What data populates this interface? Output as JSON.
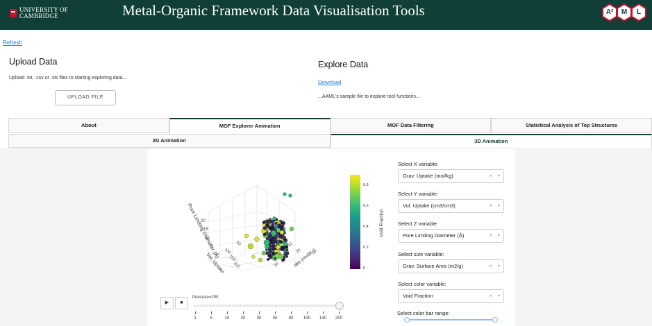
{
  "header": {
    "logo_line1": "UNIVERSITY OF",
    "logo_line2": "CAMBRIDGE",
    "title": "Metal-Organic Framework Data Visualisation Tools",
    "badge_letters": [
      "A²",
      "M",
      "L"
    ]
  },
  "refresh_label": "Refresh",
  "upload": {
    "heading": "Upload Data",
    "description": "Upload .txt, .csv or .xls files to starting exploring data...",
    "button_label": "UPLOAD FILE"
  },
  "explore": {
    "heading": "Explore Data",
    "download_label": "Download",
    "description": "...AAML's sample file to explore tool functions..."
  },
  "tabs": [
    "About",
    "MOF Explorer Animation",
    "MOF Data Filtering",
    "Statistical Analysis of Top Structures"
  ],
  "active_tab": 1,
  "subtabs": [
    "2D Animation",
    "3D Animation"
  ],
  "active_subtab": 1,
  "plot": {
    "axis_z_label": "Pore Limiting Diameter (Å)",
    "axis_y_label": "Vol. Uptake",
    "axis_x_label": "ake (mol/kg)",
    "z_ticks": [
      "20",
      "15",
      "10",
      "5",
      "0"
    ],
    "y_ticks": [
      "100",
      "150",
      "200",
      "50"
    ],
    "x_ticks": [
      "20",
      "25",
      "15",
      "10"
    ],
    "colorbar_title": "Void Fraction",
    "colorbar_ticks": [
      "0.8",
      "0.6",
      "0.4",
      "0.2",
      "0"
    ]
  },
  "controls": {
    "x_label": "Select X variable:",
    "x_value": "Grav. Uptake (mol/kg)",
    "y_label": "Select Y variable:",
    "y_value": "Vol. Uptake (cm3/cm3)",
    "z_label": "Select Z variable:",
    "z_value": "Pore Limiting Diameter (Å)",
    "size_label": "Select size variable:",
    "size_value": "Grav. Surface Area (m2/g)",
    "color_label": "Select color variable:",
    "color_value": "Void Fraction",
    "colorbar_range_label": "Select color bar range:",
    "clear_glyph": "×",
    "caret_glyph": "▾"
  },
  "animation": {
    "play_glyph": "▶",
    "stop_glyph": "■",
    "pressure_label": "Pressure=200",
    "pressure_ticks": [
      "1",
      "5",
      "10",
      "20",
      "30",
      "50",
      "80",
      "100",
      "140",
      "200"
    ],
    "current_index": 9
  },
  "colors": {
    "header_bg": "#0f3f36",
    "link": "#1f7bd6",
    "slider_accent": "#7ec4ea"
  }
}
